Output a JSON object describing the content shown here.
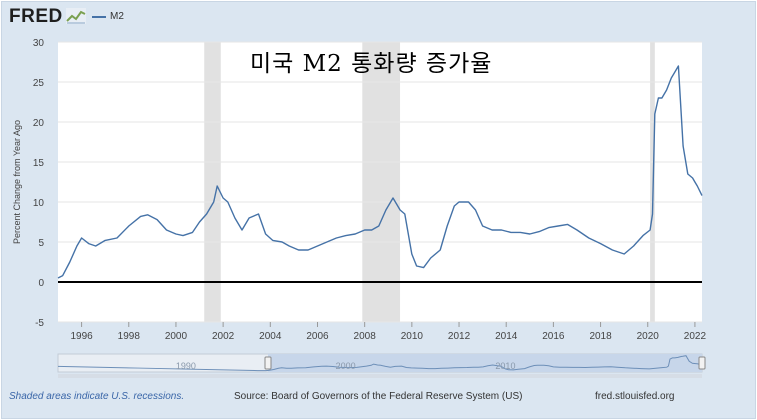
{
  "brand": {
    "logo_text": "FRED",
    "logo_icon": "chart-line-icon"
  },
  "legend": {
    "series_label": "M2",
    "color": "#4572a7"
  },
  "annotation": "미국 M2 통화량 증가율",
  "footer": {
    "recession_note": "Shaded areas indicate U.S. recessions.",
    "source": "Source: Board of Governors of the Federal Reserve System (US)",
    "site": "fred.stlouisfed.org"
  },
  "navigator": {
    "tick_labels": [
      "1990",
      "2000",
      "2010"
    ]
  },
  "chart_data": {
    "type": "line",
    "ylabel": "Percent Change from Year Ago",
    "xlabel": "",
    "ylim": [
      -5,
      30
    ],
    "xlim": [
      1995.0,
      2022.3
    ],
    "yticks": [
      -5,
      0,
      5,
      10,
      15,
      20,
      25,
      30
    ],
    "xticks": [
      1996,
      1998,
      2000,
      2002,
      2004,
      2006,
      2008,
      2010,
      2012,
      2014,
      2016,
      2018,
      2020,
      2022
    ],
    "grid": "horizontal",
    "recessions": [
      [
        2001.2,
        2001.9
      ],
      [
        2007.9,
        2009.5
      ],
      [
        2020.1,
        2020.3
      ]
    ],
    "series": [
      {
        "name": "M2",
        "color": "#4572a7",
        "x": [
          1995.0,
          1995.2,
          1995.5,
          1995.8,
          1996.0,
          1996.3,
          1996.6,
          1997.0,
          1997.5,
          1998.0,
          1998.5,
          1998.8,
          1999.2,
          1999.6,
          2000.0,
          2000.3,
          2000.7,
          2001.0,
          2001.3,
          2001.6,
          2001.75,
          2002.0,
          2002.2,
          2002.5,
          2002.8,
          2003.1,
          2003.5,
          2003.8,
          2004.1,
          2004.5,
          2004.8,
          2005.2,
          2005.6,
          2006.0,
          2006.4,
          2006.8,
          2007.2,
          2007.6,
          2008.0,
          2008.3,
          2008.6,
          2008.9,
          2009.2,
          2009.5,
          2009.7,
          2010.0,
          2010.2,
          2010.5,
          2010.8,
          2011.2,
          2011.5,
          2011.8,
          2012.0,
          2012.4,
          2012.7,
          2013.0,
          2013.4,
          2013.8,
          2014.2,
          2014.6,
          2015.0,
          2015.4,
          2015.8,
          2016.2,
          2016.6,
          2017.0,
          2017.5,
          2018.0,
          2018.5,
          2019.0,
          2019.4,
          2019.8,
          2020.1,
          2020.2,
          2020.3,
          2020.45,
          2020.6,
          2020.8,
          2021.0,
          2021.1,
          2021.3,
          2021.5,
          2021.7,
          2021.9,
          2022.0,
          2022.1,
          2022.3
        ],
        "y": [
          0.5,
          0.8,
          2.5,
          4.5,
          5.5,
          4.8,
          4.5,
          5.2,
          5.5,
          7.0,
          8.2,
          8.4,
          7.8,
          6.5,
          6.0,
          5.8,
          6.2,
          7.5,
          8.5,
          10.0,
          12.0,
          10.5,
          10.0,
          8.0,
          6.5,
          8.0,
          8.5,
          6.0,
          5.2,
          5.0,
          4.5,
          4.0,
          4.0,
          4.5,
          5.0,
          5.5,
          5.8,
          6.0,
          6.5,
          6.5,
          7.0,
          9.0,
          10.5,
          9.0,
          8.5,
          3.5,
          2.0,
          1.8,
          3.0,
          4.0,
          7.0,
          9.5,
          10.0,
          10.0,
          9.0,
          7.0,
          6.5,
          6.5,
          6.2,
          6.2,
          6.0,
          6.3,
          6.8,
          7.0,
          7.2,
          6.5,
          5.5,
          4.8,
          4.0,
          3.5,
          4.5,
          5.8,
          6.5,
          8.5,
          21.0,
          23.0,
          23.0,
          24.0,
          25.5,
          26.0,
          27.0,
          17.0,
          13.5,
          13.0,
          12.5,
          12.0,
          10.8
        ]
      }
    ]
  }
}
